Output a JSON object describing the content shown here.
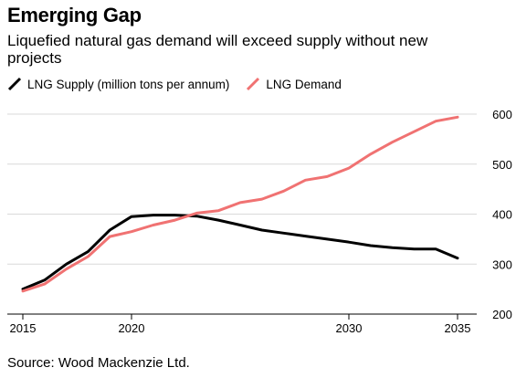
{
  "header": {
    "title": "Emerging Gap",
    "subtitle": "Liquefied natural gas demand will exceed supply without new projects"
  },
  "legend": {
    "items": [
      {
        "label": "LNG Supply (million tons per annum)",
        "color": "#000000"
      },
      {
        "label": "LNG Demand",
        "color": "#f07272"
      }
    ]
  },
  "source": "Source: Wood Mackenzie Ltd.",
  "chart_data": {
    "type": "line",
    "title": "Emerging Gap",
    "subtitle": "Liquefied natural gas demand will exceed supply without new projects",
    "xlabel": "",
    "ylabel": "",
    "xlim": [
      2015,
      2035
    ],
    "ylim": [
      200,
      600
    ],
    "x_ticks": [
      2015,
      2020,
      2030,
      2035
    ],
    "y_ticks": [
      200,
      300,
      400,
      500,
      600
    ],
    "grid": "horizontal",
    "y_axis_side": "right",
    "legend_position": "top-left",
    "x": [
      2015,
      2016,
      2017,
      2018,
      2019,
      2020,
      2021,
      2022,
      2023,
      2024,
      2025,
      2026,
      2027,
      2028,
      2029,
      2030,
      2031,
      2032,
      2033,
      2034,
      2035
    ],
    "series": [
      {
        "name": "LNG Supply (million tons per annum)",
        "color": "#000000",
        "values": [
          250,
          268,
          300,
          325,
          368,
          395,
          398,
          398,
          396,
          388,
          378,
          368,
          362,
          356,
          350,
          344,
          337,
          333,
          330,
          330,
          312
        ]
      },
      {
        "name": "LNG Demand",
        "color": "#f07272",
        "values": [
          246,
          260,
          290,
          315,
          355,
          365,
          378,
          388,
          402,
          407,
          423,
          430,
          446,
          468,
          475,
          492,
          520,
          544,
          565,
          586,
          594
        ]
      }
    ]
  }
}
